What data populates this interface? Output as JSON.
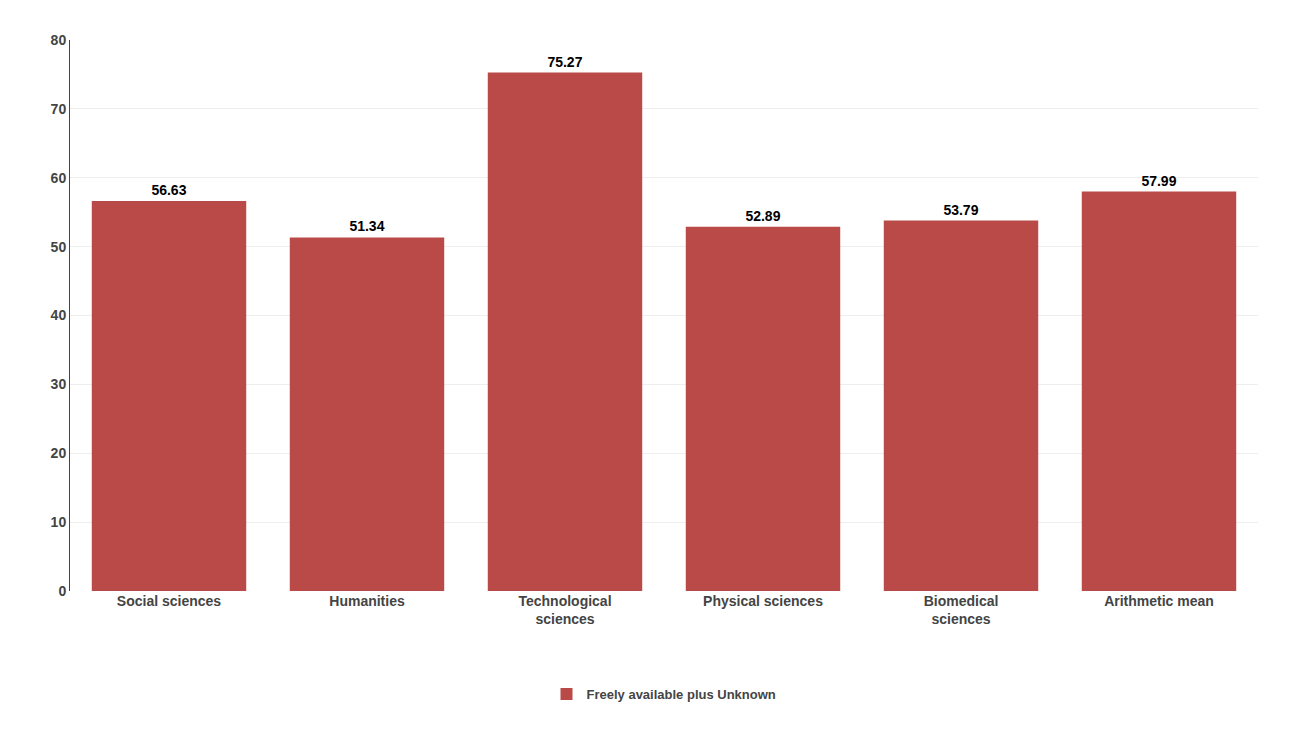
{
  "chart_data": {
    "type": "bar",
    "categories": [
      "Social sciences",
      "Humanities",
      "Technological\nsciences",
      "Physical sciences",
      "Biomedical\nsciences",
      "Arithmetic mean"
    ],
    "series": [
      {
        "name": "Freely available plus Unknown",
        "color": "#b94a48",
        "values": [
          56.63,
          51.34,
          75.27,
          52.89,
          53.79,
          57.99
        ]
      }
    ],
    "ylim": [
      0,
      80
    ],
    "yticks": [
      0,
      10,
      20,
      30,
      40,
      50,
      60,
      70,
      80
    ],
    "grid": true,
    "legend": "bottom",
    "data_labels": true
  }
}
